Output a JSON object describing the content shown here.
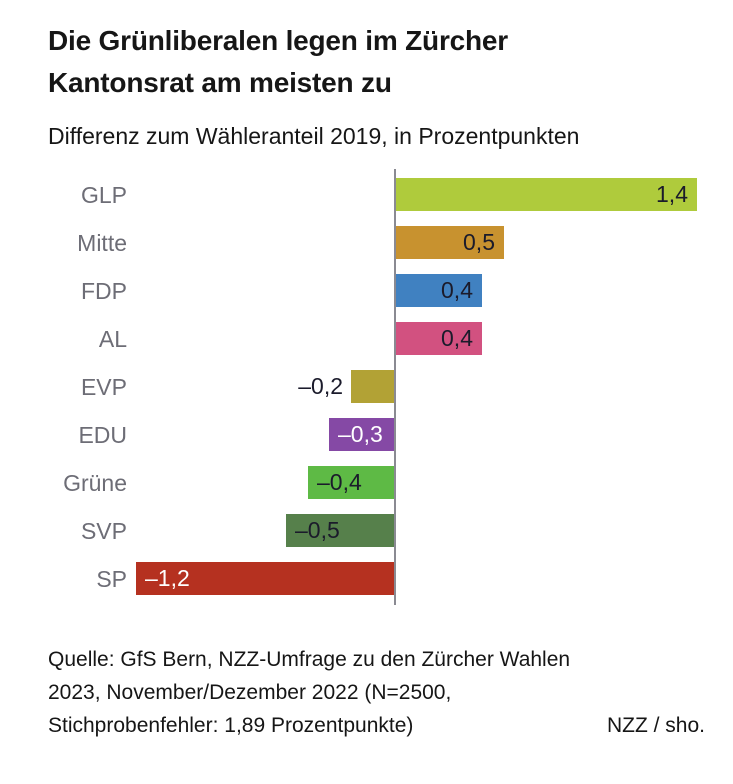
{
  "title": "Die Grünliberalen legen im Zürcher Kantonsrat am meisten zu",
  "subtitle": "Differenz zum Wähleranteil 2019, in Prozentpunkten",
  "source": {
    "lines": [
      "Quelle: GfS Bern, NZZ-Umfrage zu den Zürcher Wahlen",
      "2023, November/Dezember 2022 (N=2500,",
      "Stichprobenfehler: 1,89 Prozentpunkte)"
    ],
    "credit": "NZZ / sho."
  },
  "chart_data": {
    "type": "bar",
    "orientation": "horizontal",
    "title": "Die Grünliberalen legen im Zürcher Kantonsrat am meisten zu",
    "subtitle": "Differenz zum Wähleranteil 2019, in Prozentpunkten",
    "unit": "Prozentpunkte",
    "categories": [
      "GLP",
      "Mitte",
      "FDP",
      "AL",
      "EVP",
      "EDU",
      "Grüne",
      "SVP",
      "SP"
    ],
    "values": [
      1.4,
      0.5,
      0.4,
      0.4,
      -0.2,
      -0.3,
      -0.4,
      -0.5,
      -1.2
    ],
    "xlim": [
      -1.3,
      1.6
    ],
    "grid": false,
    "legend": false,
    "axis_color": "#8a8a92",
    "category_label_color": "#6d6d76",
    "bars": [
      {
        "label": "GLP",
        "value": 1.4,
        "display": "1,4",
        "color": "#afcb3c",
        "text_color": "#1b1b2b",
        "label_placement": "inside"
      },
      {
        "label": "Mitte",
        "value": 0.5,
        "display": "0,5",
        "color": "#c8922f",
        "text_color": "#1b1b2b",
        "label_placement": "inside"
      },
      {
        "label": "FDP",
        "value": 0.4,
        "display": "0,4",
        "color": "#4081c1",
        "text_color": "#1b1b2b",
        "label_placement": "inside"
      },
      {
        "label": "AL",
        "value": 0.4,
        "display": "0,4",
        "color": "#d25180",
        "text_color": "#1b1b2b",
        "label_placement": "inside"
      },
      {
        "label": "EVP",
        "value": -0.2,
        "display": "–0,2",
        "color": "#b2a235",
        "text_color": "#1b1b2b",
        "label_placement": "outside"
      },
      {
        "label": "EDU",
        "value": -0.3,
        "display": "–0,3",
        "color": "#8549a5",
        "text_color": "#ffffff",
        "label_placement": "inside"
      },
      {
        "label": "Grüne",
        "value": -0.4,
        "display": "–0,4",
        "color": "#5eba45",
        "text_color": "#1b1b2b",
        "label_placement": "inside"
      },
      {
        "label": "SVP",
        "value": -0.5,
        "display": "–0,5",
        "color": "#56804b",
        "text_color": "#1b1b2b",
        "label_placement": "inside"
      },
      {
        "label": "SP",
        "value": -1.2,
        "display": "–1,2",
        "color": "#b53120",
        "text_color": "#ffffff",
        "label_placement": "inside"
      }
    ]
  }
}
